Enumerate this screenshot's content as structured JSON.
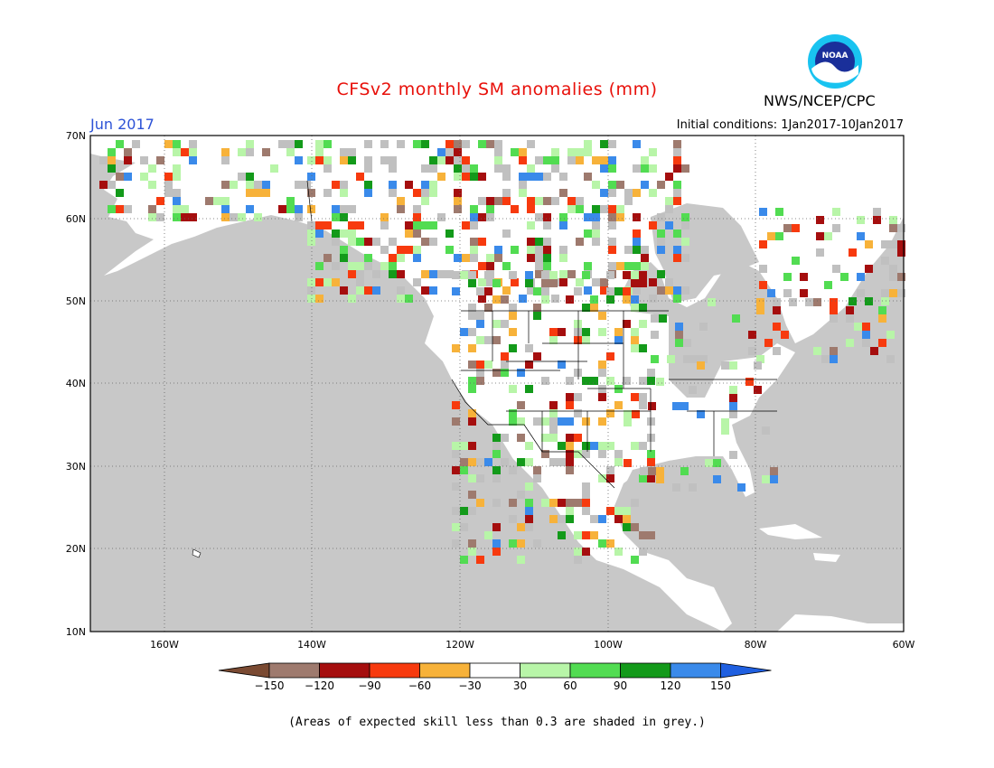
{
  "header": {
    "title": "CFSv2 monthly SM anomalies (mm)",
    "month": "Jun 2017",
    "initial_conditions": "Initial conditions: 1Jan2017-10Jan2017",
    "agency": "NWS/NCEP/CPC",
    "logo_text": "NOAA"
  },
  "map": {
    "lat_labels": [
      "70N",
      "60N",
      "50N",
      "40N",
      "30N",
      "20N",
      "10N"
    ],
    "lon_labels": [
      "160W",
      "140W",
      "120W",
      "100W",
      "80W",
      "60W"
    ],
    "lat_range": [
      10,
      70
    ],
    "lon_range": [
      -170,
      -60
    ],
    "background_color": "#c8c8c8",
    "land_color": "#ffffff"
  },
  "colorbar": {
    "labels": [
      "−150",
      "−120",
      "−90",
      "−60",
      "−30",
      "30",
      "60",
      "90",
      "120",
      "150"
    ],
    "colors": [
      "#7a4a32",
      "#9e7a6e",
      "#a50e0e",
      "#f73a0e",
      "#f7b23a",
      "#ffffff",
      "#b8f5a8",
      "#52dc52",
      "#139a1a",
      "#3a8aea",
      "#1f5fe0"
    ]
  },
  "footnote": "(Areas of expected skill less than 0.3 are shaded in grey.)"
}
